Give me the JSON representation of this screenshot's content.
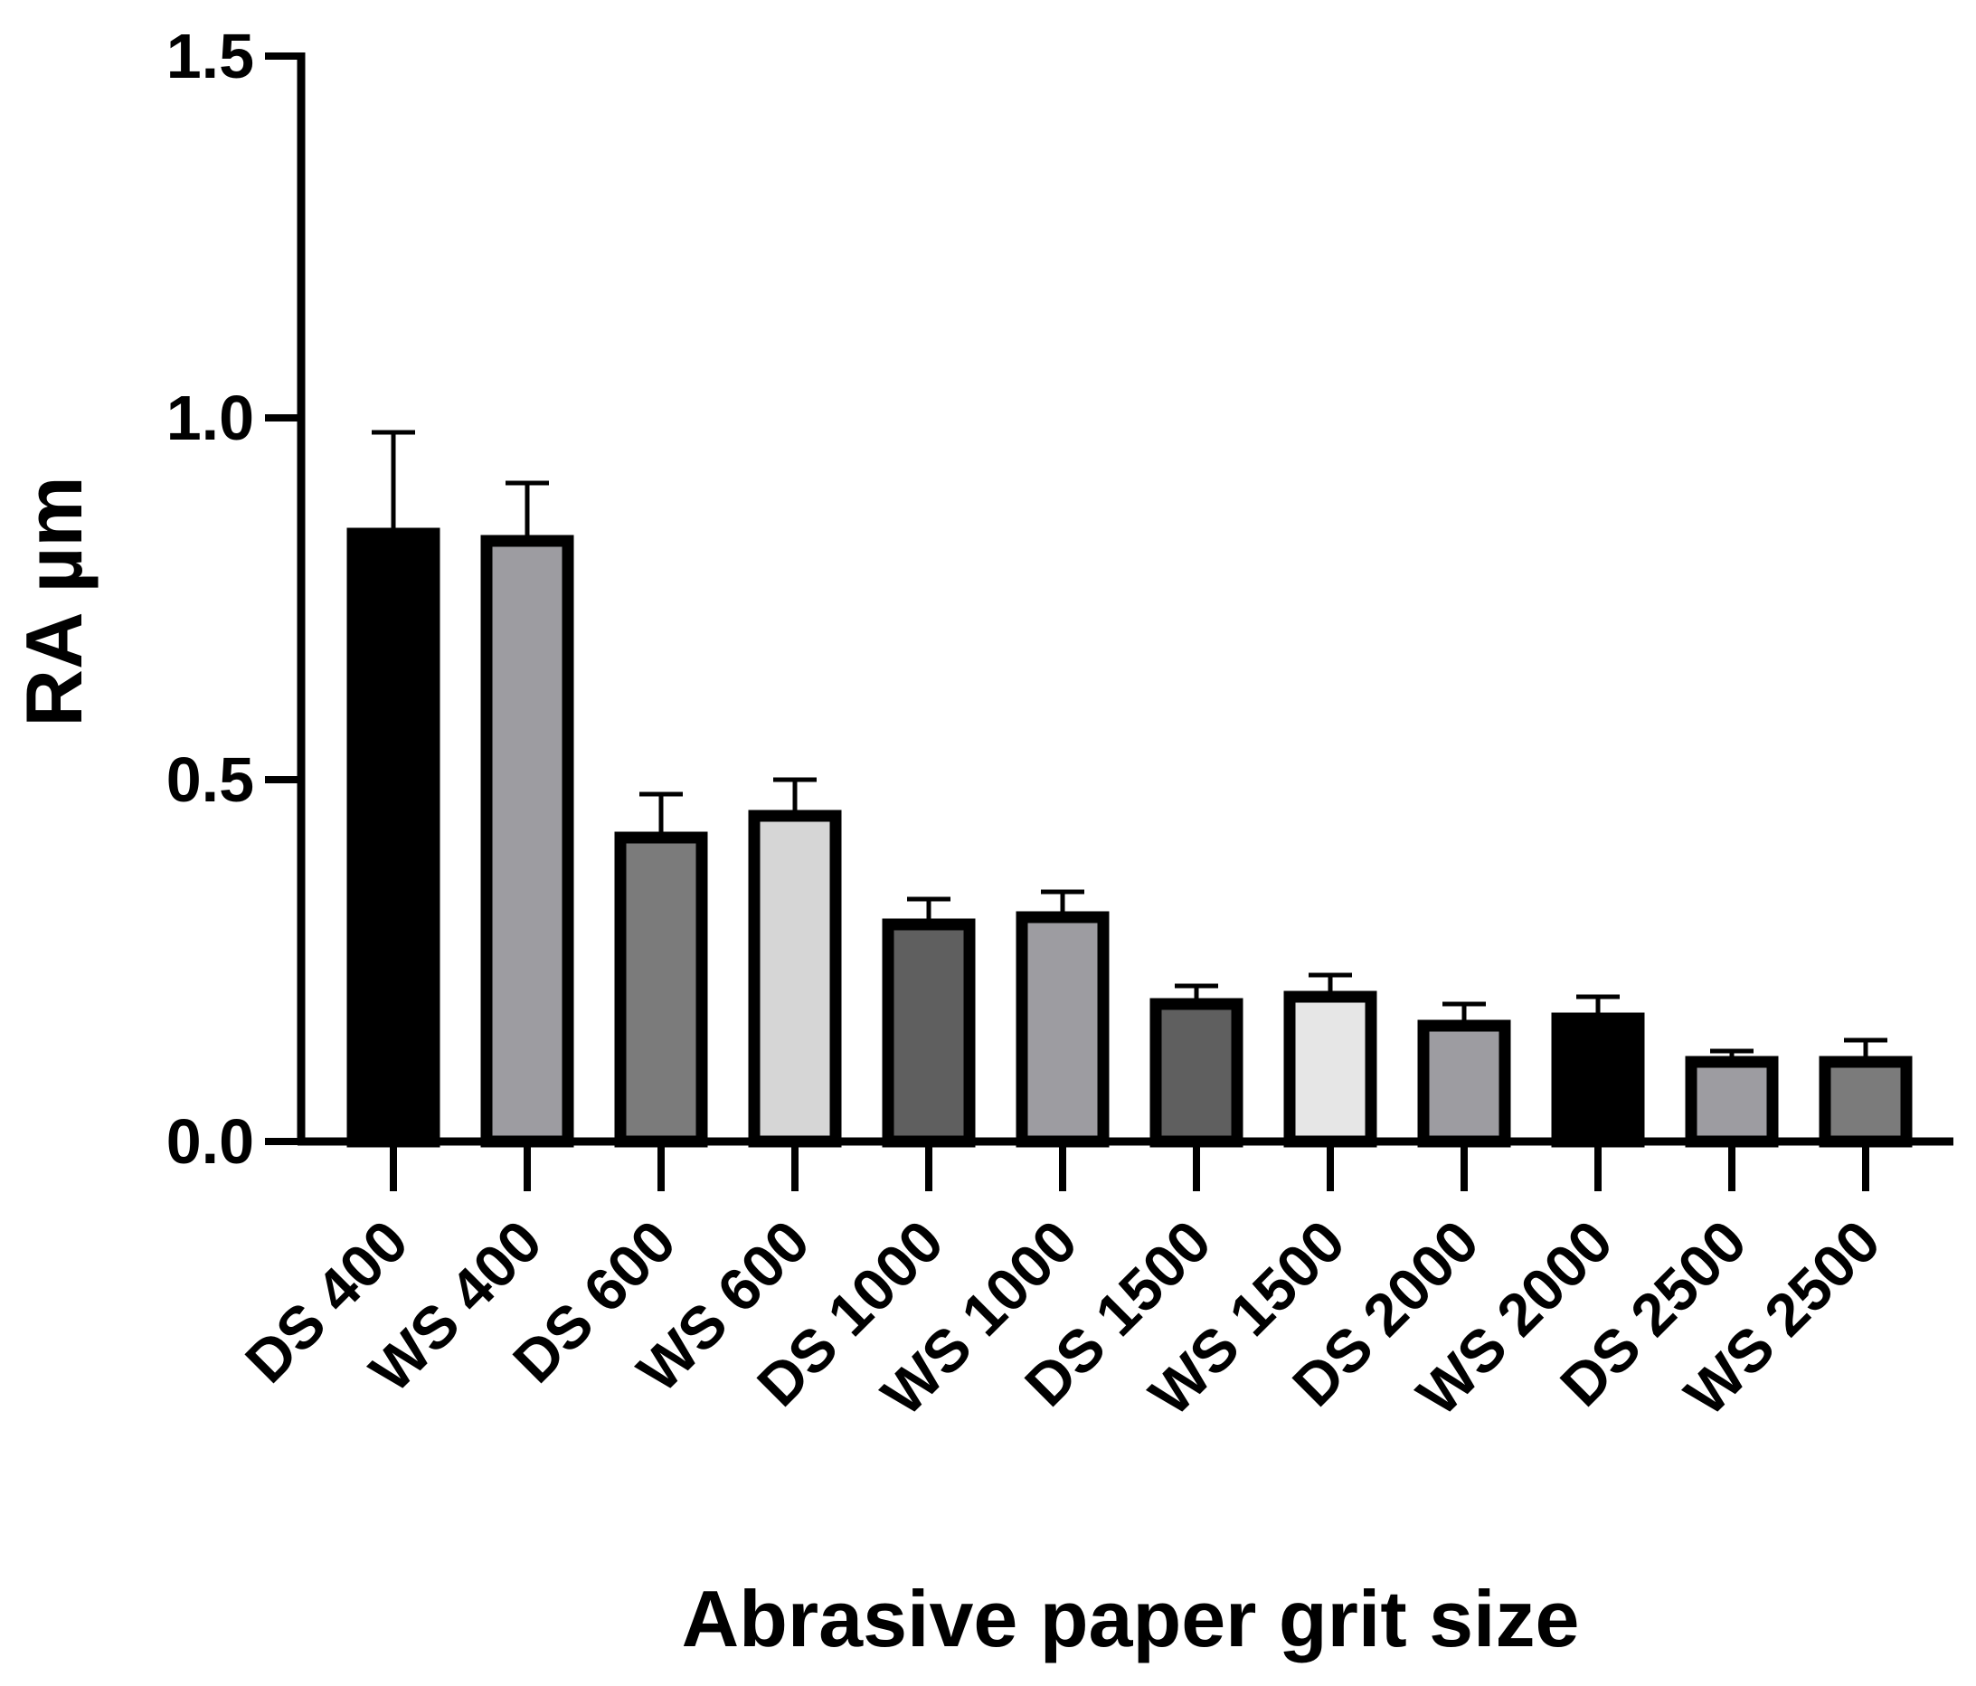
{
  "chart_data": {
    "type": "bar",
    "title": "",
    "xlabel": "Abrasive paper grit size",
    "ylabel": "RA µm",
    "ylim": [
      0,
      1.5
    ],
    "yticks": [
      "0.0",
      "0.5",
      "1.0",
      "1.5"
    ],
    "grid": false,
    "legend": "none",
    "categories": [
      "DS 400",
      "WS 400",
      "DS 600",
      "WS 600",
      "DS 1000",
      "WS 1000",
      "DS 1500",
      "WS 1500",
      "DS 2000",
      "WS 2000",
      "DS 2500",
      "WS 2500"
    ],
    "series": [
      {
        "values": [
          0.84,
          0.83,
          0.42,
          0.45,
          0.3,
          0.31,
          0.19,
          0.2,
          0.16,
          0.17,
          0.11,
          0.11
        ],
        "errors": [
          0.14,
          0.08,
          0.06,
          0.05,
          0.035,
          0.035,
          0.025,
          0.03,
          0.03,
          0.03,
          0.015,
          0.03
        ],
        "colors": [
          "#000000",
          "#9d9ca1",
          "#7b7b7b",
          "#d6d6d6",
          "#5f5f5f",
          "#9d9ca1",
          "#5f5f5f",
          "#e6e6e6",
          "#9d9ca1",
          "#000000",
          "#9d9ca1",
          "#7b7b7b"
        ]
      }
    ]
  }
}
